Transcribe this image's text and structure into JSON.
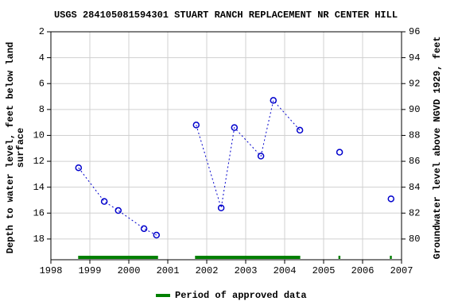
{
  "chart_data": {
    "type": "line",
    "title": "USGS 284105081594301 STUART RANCH REPLACEMENT NR CENTER HILL",
    "y_label": [
      "Depth to water level, feet below land",
      "surface"
    ],
    "y2_label": "Groundwater level above NGVD 1929, feet",
    "x": [
      1998.71,
      1999.37,
      1999.73,
      2000.39,
      2000.71,
      null,
      2001.73,
      2002.37,
      2002.71,
      2003.39,
      2003.71,
      2004.39,
      null,
      2005.41,
      null,
      2006.73
    ],
    "series": [
      {
        "name": "Depth to water level",
        "color": "#0000cc",
        "values": [
          12.5,
          15.1,
          15.8,
          17.2,
          17.7,
          null,
          9.2,
          15.6,
          9.4,
          11.6,
          7.3,
          9.6,
          null,
          11.3,
          null,
          14.9
        ]
      }
    ],
    "xlim": [
      1998,
      2007
    ],
    "xticks": [
      1998,
      1999,
      2000,
      2001,
      2002,
      2003,
      2004,
      2005,
      2006,
      2007
    ],
    "ylim": [
      19.6,
      2
    ],
    "yticks": [
      2,
      4,
      6,
      8,
      10,
      12,
      14,
      16,
      18
    ],
    "y2lim": [
      78.4,
      96
    ],
    "y2ticks": [
      80,
      82,
      84,
      86,
      88,
      90,
      92,
      94,
      96
    ],
    "grid": true,
    "approved_periods": {
      "name": "Period of approved data",
      "color": "#008000",
      "ranges": [
        [
          1998.7,
          2000.75
        ],
        [
          2001.7,
          2004.4
        ],
        [
          2005.38,
          2005.43
        ],
        [
          2006.7,
          2006.75
        ]
      ]
    }
  }
}
